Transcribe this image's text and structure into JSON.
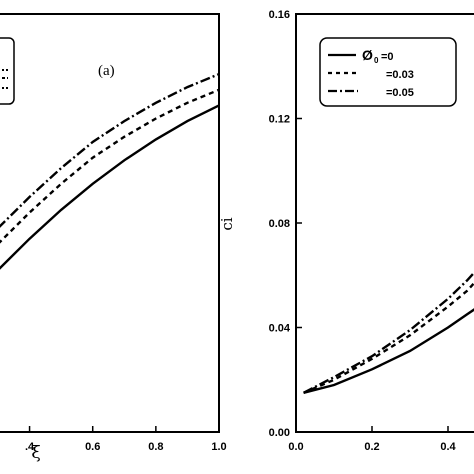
{
  "chart_data": [
    {
      "type": "line",
      "panel_label": "(a)",
      "xlabel": "ξ",
      "ylabel": "",
      "xlim": [
        0.3,
        1.0
      ],
      "ylim": [
        0.0,
        0.16
      ],
      "x_ticks": [
        0.4,
        0.6,
        0.8,
        1.0
      ],
      "x_tick_labels": [
        ".4",
        "0.6",
        "0.8",
        "1.0"
      ],
      "legend": "top-left (partially visible)",
      "grid": false,
      "series": [
        {
          "style": "solid",
          "x": [
            0.3,
            0.4,
            0.5,
            0.6,
            0.7,
            0.8,
            0.9,
            1.0
          ],
          "y": [
            0.062,
            0.074,
            0.085,
            0.095,
            0.104,
            0.112,
            0.119,
            0.125
          ]
        },
        {
          "style": "dashed",
          "x": [
            0.3,
            0.4,
            0.5,
            0.6,
            0.7,
            0.8,
            0.9,
            1.0
          ],
          "y": [
            0.072,
            0.084,
            0.095,
            0.105,
            0.113,
            0.12,
            0.126,
            0.131
          ]
        },
        {
          "style": "dash-dot",
          "x": [
            0.3,
            0.4,
            0.5,
            0.6,
            0.7,
            0.8,
            0.9,
            1.0
          ],
          "y": [
            0.078,
            0.09,
            0.101,
            0.111,
            0.119,
            0.126,
            0.132,
            0.137
          ]
        }
      ]
    },
    {
      "type": "line",
      "ylabel": "ci",
      "xlabel": "",
      "xlim": [
        0.0,
        0.5
      ],
      "ylim": [
        0.0,
        0.16
      ],
      "x_ticks": [
        0.0,
        0.2,
        0.4
      ],
      "x_tick_labels": [
        "0.0",
        "0.2",
        "0.4"
      ],
      "y_ticks": [
        0.0,
        0.04,
        0.08,
        0.12,
        0.16
      ],
      "y_tick_labels": [
        "0.00",
        "0.04",
        "0.08",
        "0.12",
        "0.16"
      ],
      "legend": "top-right",
      "grid": false,
      "legend_entries": [
        {
          "symbol": "Ø",
          "subscript": "0",
          "label": "=0",
          "style": "solid"
        },
        {
          "label": "=0.03",
          "style": "dashed"
        },
        {
          "label": "=0.05",
          "style": "dash-dot"
        }
      ],
      "series": [
        {
          "style": "solid",
          "x": [
            0.02,
            0.1,
            0.2,
            0.3,
            0.4,
            0.45,
            0.5
          ],
          "y": [
            0.015,
            0.018,
            0.024,
            0.031,
            0.04,
            0.045,
            0.05
          ]
        },
        {
          "style": "dashed",
          "x": [
            0.02,
            0.1,
            0.2,
            0.3,
            0.4,
            0.45,
            0.5
          ],
          "y": [
            0.015,
            0.02,
            0.028,
            0.037,
            0.048,
            0.054,
            0.062
          ]
        },
        {
          "style": "dash-dot",
          "x": [
            0.02,
            0.1,
            0.2,
            0.3,
            0.4,
            0.45,
            0.5
          ],
          "y": [
            0.015,
            0.021,
            0.029,
            0.039,
            0.051,
            0.058,
            0.066
          ]
        }
      ]
    }
  ],
  "styles": {
    "line_color": "#000000",
    "background": "#ffffff"
  }
}
